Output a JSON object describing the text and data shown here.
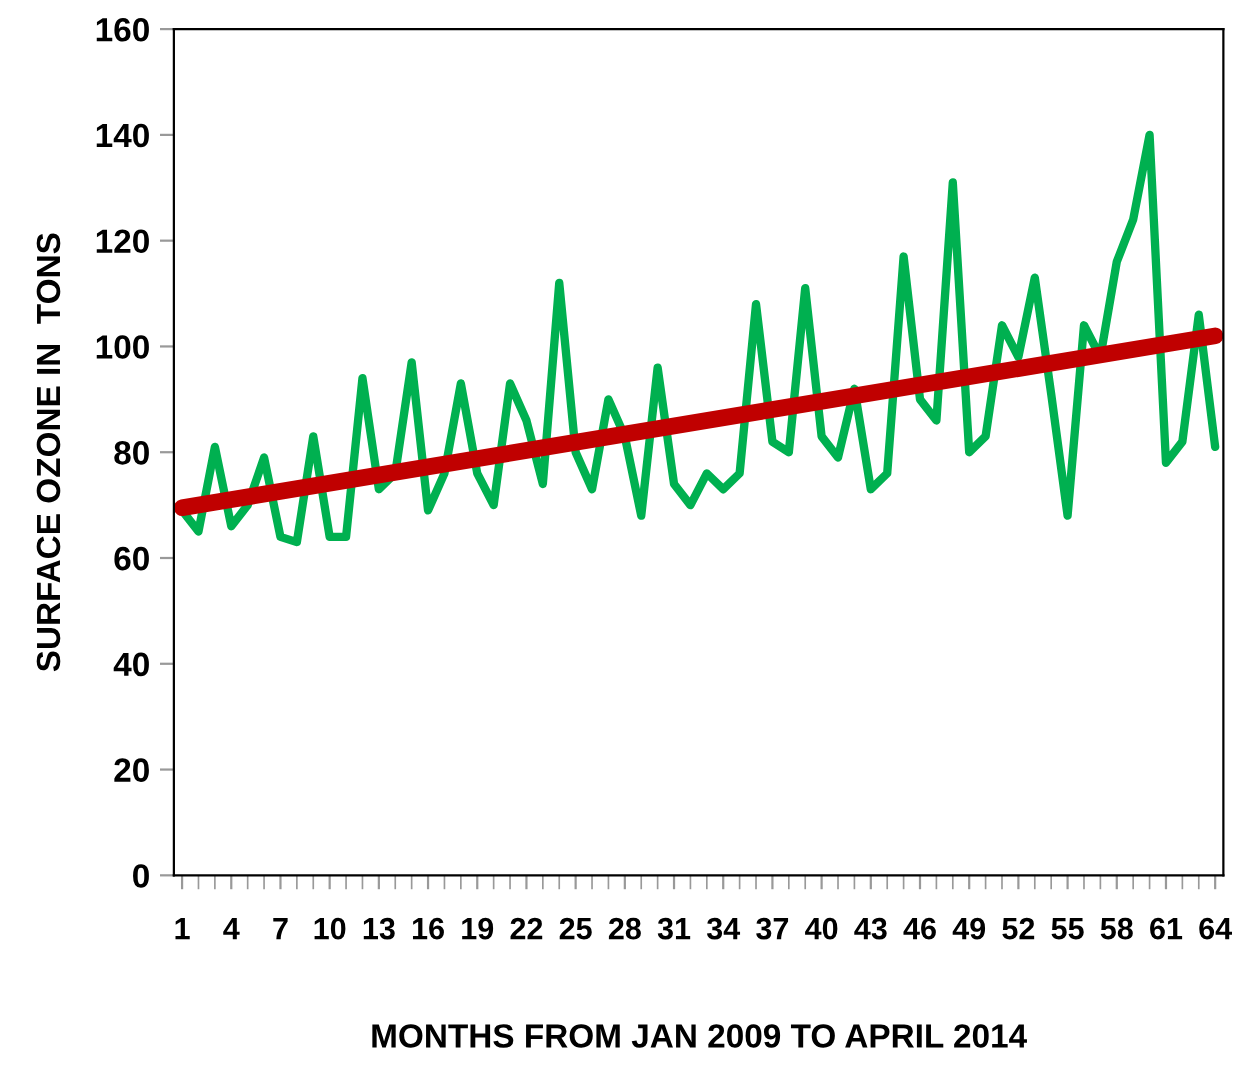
{
  "chart_data": {
    "type": "line",
    "xlabel": "MONTHS FROM JAN 2009 TO APRIL 2014",
    "ylabel": "SURFACE OZONE IN  TONS",
    "xlim": [
      0.5,
      64.5
    ],
    "xticks": [
      1,
      4,
      7,
      10,
      13,
      16,
      19,
      22,
      25,
      28,
      31,
      34,
      37,
      40,
      43,
      46,
      49,
      52,
      55,
      58,
      61,
      64
    ],
    "ylim": [
      0,
      160
    ],
    "yticks": [
      0,
      20,
      40,
      60,
      80,
      100,
      120,
      140,
      160
    ],
    "grid": false,
    "legend": false,
    "marker": "none",
    "line_style": "solid",
    "series": [
      {
        "color": "#00b050",
        "x": [
          1,
          2,
          3,
          4,
          5,
          6,
          7,
          8,
          9,
          10,
          11,
          12,
          13,
          14,
          15,
          16,
          17,
          18,
          19,
          20,
          21,
          22,
          23,
          24,
          25,
          26,
          27,
          28,
          29,
          30,
          31,
          32,
          33,
          34,
          35,
          36,
          37,
          38,
          39,
          40,
          41,
          42,
          43,
          44,
          45,
          46,
          47,
          48,
          49,
          50,
          51,
          52,
          53,
          54,
          55,
          56,
          57,
          58,
          59,
          60,
          61,
          62,
          63,
          64
        ],
        "values": [
          69,
          65,
          81,
          66,
          70,
          79,
          64,
          63,
          83,
          64,
          64,
          94,
          73,
          76,
          97,
          69,
          76,
          93,
          76,
          70,
          93,
          86,
          74,
          112,
          80,
          73,
          90,
          83,
          68,
          96,
          74,
          70,
          76,
          73,
          76,
          108,
          82,
          80,
          111,
          83,
          79,
          92,
          73,
          76,
          117,
          90,
          86,
          131,
          80,
          83,
          104,
          98,
          113,
          91,
          68,
          104,
          98,
          116,
          124,
          140,
          78,
          82,
          106,
          81
        ]
      },
      {
        "color": "#c00000",
        "x": [
          1,
          64
        ],
        "values": [
          69.5,
          102
        ]
      }
    ]
  }
}
